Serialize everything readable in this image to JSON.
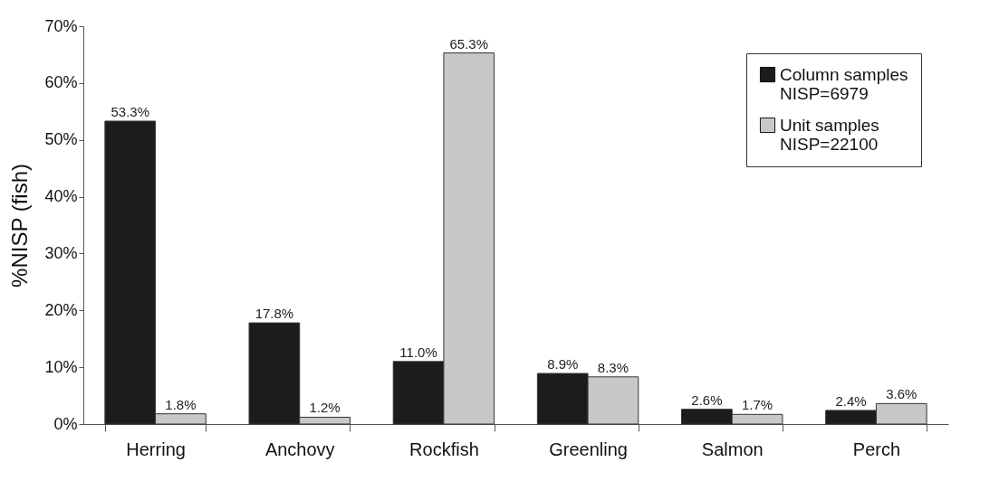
{
  "chart_data": {
    "type": "bar",
    "ylabel": "%NISP (fish)",
    "categories": [
      "Herring",
      "Anchovy",
      "Rockfish",
      "Greenling",
      "Salmon",
      "Perch"
    ],
    "series": [
      {
        "name": "Column samples\nNISP=6979",
        "color": "#1c1c1c",
        "values": [
          53.3,
          17.8,
          11.0,
          8.9,
          2.6,
          2.4
        ],
        "value_labels": [
          "53.3%",
          "17.8%",
          "11.0%",
          "8.9%",
          "2.6%",
          "2.4%"
        ]
      },
      {
        "name": "Unit samples\nNISP=22100",
        "color": "#c8c8c8",
        "values": [
          1.8,
          1.2,
          65.3,
          8.3,
          1.7,
          3.6
        ],
        "value_labels": [
          "1.8%",
          "1.2%",
          "65.3%",
          "8.3%",
          "1.7%",
          "3.6%"
        ]
      }
    ],
    "ylim": [
      0,
      70
    ],
    "yticks": [
      {
        "value": 0,
        "label": "0%"
      },
      {
        "value": 10,
        "label": "10%"
      },
      {
        "value": 20,
        "label": "20%"
      },
      {
        "value": 30,
        "label": "30%"
      },
      {
        "value": 40,
        "label": "40%"
      },
      {
        "value": 50,
        "label": "50%"
      },
      {
        "value": 60,
        "label": "60%"
      },
      {
        "value": 70,
        "label": "70%"
      }
    ],
    "grid": false,
    "legend": "top right"
  }
}
